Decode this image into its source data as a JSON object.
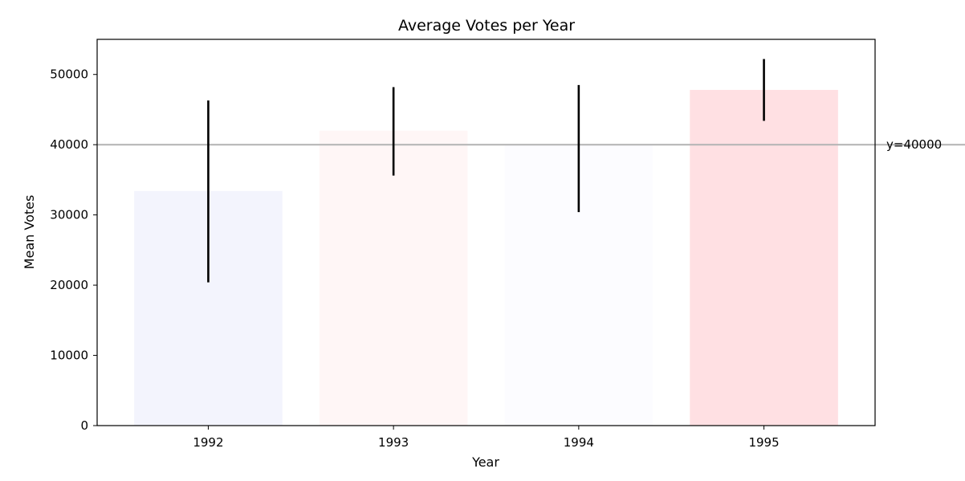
{
  "chart_data": {
    "type": "bar",
    "title": "Average Votes per Year",
    "xlabel": "Year",
    "ylabel": "Mean Votes",
    "categories": [
      "1992",
      "1993",
      "1994",
      "1995"
    ],
    "values": [
      33400,
      42000,
      39900,
      47800
    ],
    "error_low": [
      20400,
      35600,
      30400,
      43400
    ],
    "error_high": [
      46300,
      48200,
      48500,
      52200
    ],
    "bar_colors": [
      "#f3f4fd",
      "#fff6f6",
      "#fcfcff",
      "#ffe0e3"
    ],
    "ylim": [
      0,
      55000
    ],
    "yticks": [
      0,
      10000,
      20000,
      30000,
      40000,
      50000
    ],
    "reference_line": {
      "value": 40000,
      "label": "y=40000",
      "color": "#b3b3b3"
    },
    "grid": false,
    "legend": "none"
  }
}
